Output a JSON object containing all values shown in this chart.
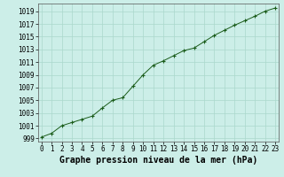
{
  "x": [
    0,
    1,
    2,
    3,
    4,
    5,
    6,
    7,
    8,
    9,
    10,
    11,
    12,
    13,
    14,
    15,
    16,
    17,
    18,
    19,
    20,
    21,
    22,
    23
  ],
  "y": [
    999.2,
    999.8,
    1001.0,
    1001.5,
    1002.0,
    1002.5,
    1003.8,
    1005.0,
    1005.4,
    1007.2,
    1009.0,
    1010.5,
    1011.2,
    1012.0,
    1012.8,
    1013.2,
    1014.2,
    1015.2,
    1016.0,
    1016.8,
    1017.5,
    1018.2,
    1019.0,
    1019.5
  ],
  "ylim": [
    998.5,
    1020.2
  ],
  "xlim": [
    -0.3,
    23.3
  ],
  "yticks": [
    999,
    1001,
    1003,
    1005,
    1007,
    1009,
    1011,
    1013,
    1015,
    1017,
    1019
  ],
  "xticks": [
    0,
    1,
    2,
    3,
    4,
    5,
    6,
    7,
    8,
    9,
    10,
    11,
    12,
    13,
    14,
    15,
    16,
    17,
    18,
    19,
    20,
    21,
    22,
    23
  ],
  "line_color": "#1a5c1a",
  "marker": "+",
  "bg_color": "#cceee8",
  "grid_color": "#aad8cc",
  "xlabel": "Graphe pression niveau de la mer (hPa)",
  "tick_fontsize": 5.5,
  "label_fontsize": 7.0
}
